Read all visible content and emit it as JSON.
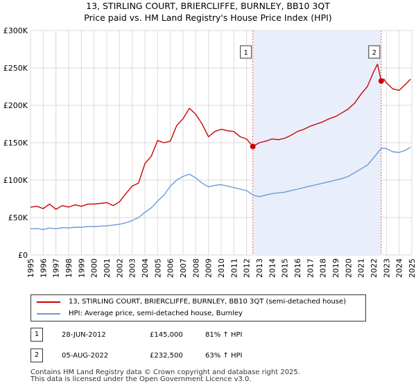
{
  "title_line1": "13, STIRLING COURT, BRIERCLIFFE, BURNLEY, BB10 3QT",
  "title_line2": "Price paid vs. HM Land Registry's House Price Index (HPI)",
  "chart_data": {
    "type": "line",
    "x_range": [
      1995,
      2025
    ],
    "ylim": [
      0,
      300000
    ],
    "y_ticks": [
      0,
      50000,
      100000,
      150000,
      200000,
      250000,
      300000
    ],
    "y_tick_labels": [
      "£0",
      "£50K",
      "£100K",
      "£150K",
      "£200K",
      "£250K",
      "£300K"
    ],
    "x_ticks": [
      1995,
      1996,
      1997,
      1998,
      1999,
      2000,
      2001,
      2002,
      2003,
      2004,
      2005,
      2006,
      2007,
      2008,
      2009,
      2010,
      2011,
      2012,
      2013,
      2014,
      2015,
      2016,
      2017,
      2018,
      2019,
      2020,
      2021,
      2022,
      2023,
      2024,
      2025
    ],
    "x_tick_labels": [
      "1995",
      "1996",
      "1997",
      "1998",
      "1999",
      "2000",
      "2001",
      "2002",
      "2003",
      "2004",
      "2005",
      "2006",
      "2007",
      "2008",
      "2009",
      "2010",
      "2011",
      "2012",
      "2013",
      "2014",
      "2015",
      "2016",
      "2017",
      "2018",
      "2019",
      "2020",
      "2021",
      "2022",
      "2023",
      "2024",
      "2025"
    ],
    "grid": true,
    "shaded_region": [
      2012.49,
      2022.59
    ],
    "series": [
      {
        "name": "13, STIRLING COURT, BRIERCLIFFE, BURNLEY, BB10 3QT (semi-detached house)",
        "color": "#cc0000",
        "x": [
          1995,
          1995.5,
          1996,
          1996.5,
          1997,
          1997.5,
          1998,
          1998.5,
          1999,
          1999.5,
          2000,
          2000.5,
          2001,
          2001.5,
          2002,
          2002.5,
          2003,
          2003.5,
          2004,
          2004.5,
          2005,
          2005.5,
          2006,
          2006.5,
          2007,
          2007.5,
          2008,
          2008.5,
          2009,
          2009.5,
          2010,
          2010.5,
          2011,
          2011.5,
          2012,
          2012.49,
          2013,
          2013.5,
          2014,
          2014.5,
          2015,
          2015.5,
          2016,
          2016.5,
          2017,
          2017.5,
          2018,
          2018.5,
          2019,
          2019.5,
          2020,
          2020.5,
          2021,
          2021.5,
          2022,
          2022.3,
          2022.59,
          2022.8,
          2023,
          2023.5,
          2024,
          2024.5,
          2024.9
        ],
        "values": [
          64000,
          65000,
          62000,
          68000,
          61000,
          66000,
          64000,
          67000,
          65000,
          68000,
          68000,
          69000,
          70000,
          66000,
          71000,
          82000,
          92000,
          96000,
          122000,
          132000,
          153000,
          150000,
          152000,
          173000,
          182000,
          196000,
          188000,
          175000,
          158000,
          165000,
          168000,
          166000,
          165000,
          158000,
          155000,
          145000,
          150000,
          152000,
          155000,
          154000,
          156000,
          160000,
          165000,
          168000,
          172000,
          175000,
          178000,
          182000,
          185000,
          190000,
          195000,
          203000,
          215000,
          225000,
          245000,
          255000,
          232500,
          235000,
          230000,
          222000,
          220000,
          228000,
          235000
        ]
      },
      {
        "name": "HPI: Average price, semi-detached house, Burnley",
        "color": "#6a9ad8",
        "x": [
          1995,
          1995.5,
          1996,
          1996.5,
          1997,
          1997.5,
          1998,
          1998.5,
          1999,
          1999.5,
          2000,
          2000.5,
          2001,
          2001.5,
          2002,
          2002.5,
          2003,
          2003.5,
          2004,
          2004.5,
          2005,
          2005.5,
          2006,
          2006.5,
          2007,
          2007.5,
          2008,
          2008.5,
          2009,
          2009.5,
          2010,
          2010.5,
          2011,
          2011.5,
          2012,
          2012.5,
          2013,
          2013.5,
          2014,
          2014.5,
          2015,
          2015.5,
          2016,
          2016.5,
          2017,
          2017.5,
          2018,
          2018.5,
          2019,
          2019.5,
          2020,
          2020.5,
          2021,
          2021.5,
          2022,
          2022.59,
          2023,
          2023.5,
          2024,
          2024.5,
          2024.9
        ],
        "values": [
          35000,
          35500,
          34000,
          36000,
          35000,
          36500,
          36000,
          37000,
          37000,
          38000,
          38000,
          38500,
          39000,
          40000,
          41000,
          43000,
          46000,
          50000,
          57000,
          63000,
          72000,
          80000,
          92000,
          100000,
          105000,
          108000,
          103000,
          96000,
          91000,
          93000,
          94000,
          92000,
          90000,
          88000,
          86000,
          80000,
          78000,
          80000,
          82000,
          83000,
          84000,
          86000,
          88000,
          90000,
          92000,
          94000,
          96000,
          98000,
          100000,
          102000,
          105000,
          110000,
          115000,
          120000,
          130000,
          142500,
          142000,
          138000,
          137000,
          140000,
          144000
        ]
      }
    ],
    "annotations": [
      {
        "label": "1",
        "x": 2012.49,
        "y": 145000
      },
      {
        "label": "2",
        "x": 2022.59,
        "y": 232500
      }
    ]
  },
  "legend": {
    "item1": "13, STIRLING COURT, BRIERCLIFFE, BURNLEY, BB10 3QT (semi-detached house)",
    "item2": "HPI: Average price, semi-detached house, Burnley"
  },
  "sales": [
    {
      "num": "1",
      "date": "28-JUN-2012",
      "price": "£145,000",
      "hpi": "81% ↑ HPI"
    },
    {
      "num": "2",
      "date": "05-AUG-2022",
      "price": "£232,500",
      "hpi": "63% ↑ HPI"
    }
  ],
  "footer_line1": "Contains HM Land Registry data © Crown copyright and database right 2025.",
  "footer_line2": "This data is licensed under the Open Government Licence v3.0."
}
